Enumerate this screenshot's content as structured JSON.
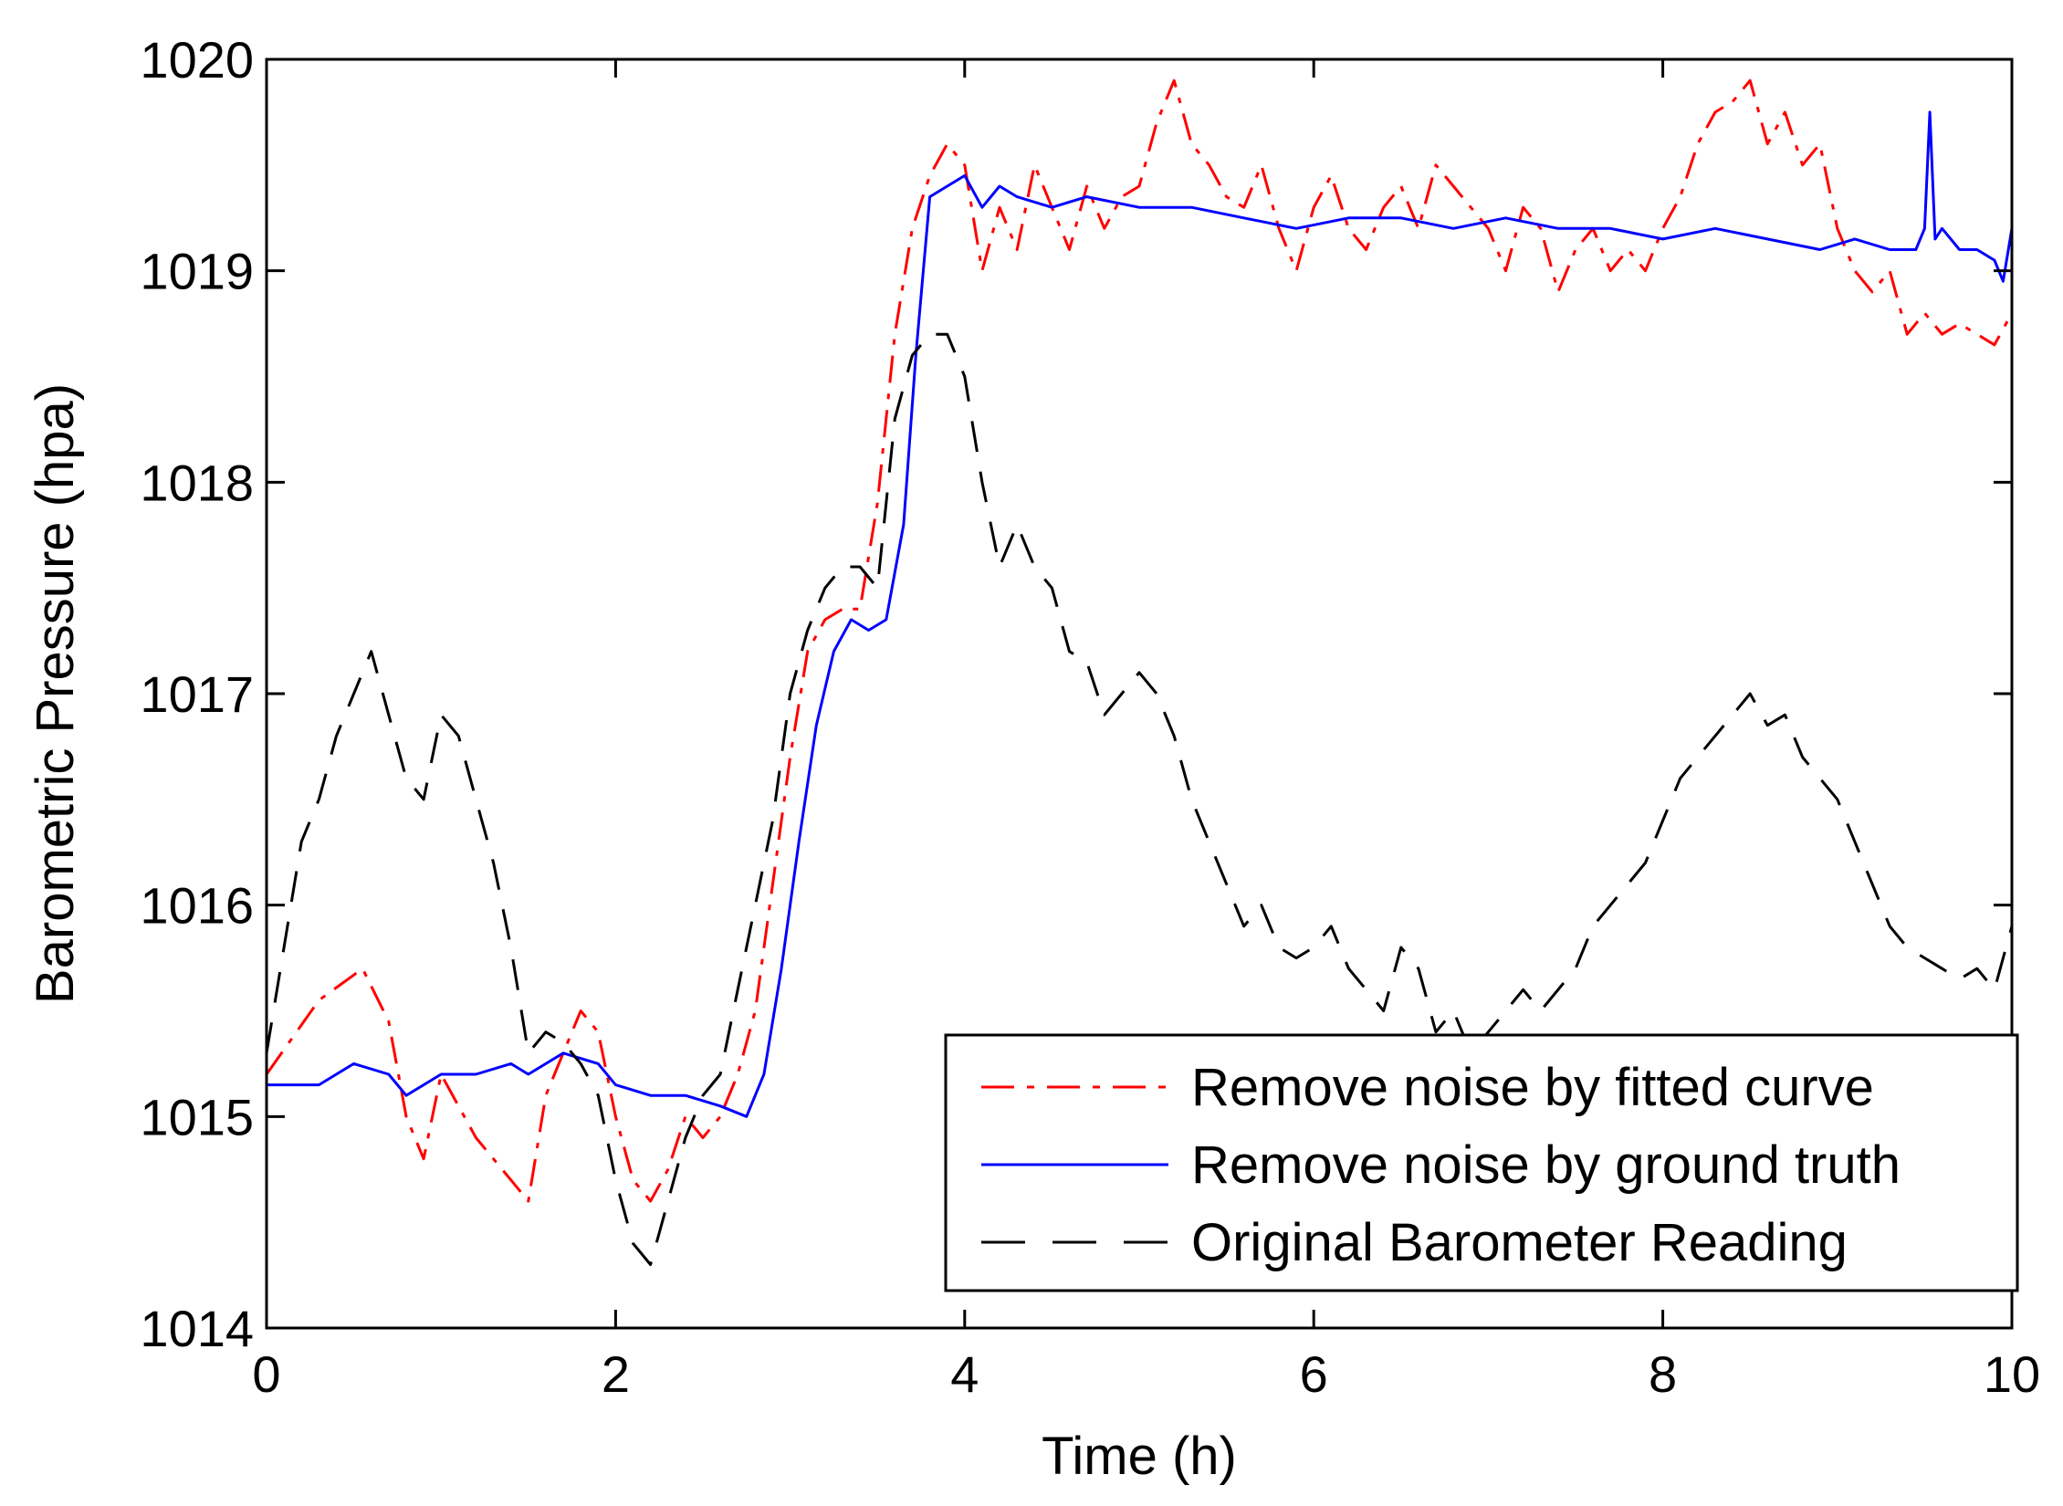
{
  "chart_data": {
    "type": "line",
    "title": "",
    "xlabel": "Time (h)",
    "ylabel": "Barometric Pressure (hpa)",
    "xlim": [
      0,
      10
    ],
    "ylim": [
      1014,
      1020
    ],
    "xticks": [
      0,
      2,
      4,
      6,
      8,
      10
    ],
    "yticks": [
      1014,
      1015,
      1016,
      1017,
      1018,
      1019,
      1020
    ],
    "grid": false,
    "legend_position": "bottom-right",
    "series": [
      {
        "name": "Remove noise by fitted curve",
        "color": "#ff0000",
        "style": "dash-dot",
        "x": [
          0,
          0.3,
          0.55,
          0.7,
          0.8,
          0.9,
          1.0,
          1.1,
          1.2,
          1.3,
          1.4,
          1.5,
          1.6,
          1.7,
          1.8,
          1.9,
          2.0,
          2.1,
          2.2,
          2.3,
          2.4,
          2.5,
          2.6,
          2.7,
          2.8,
          2.9,
          3.0,
          3.1,
          3.2,
          3.3,
          3.4,
          3.5,
          3.6,
          3.7,
          3.8,
          3.9,
          4.0,
          4.1,
          4.2,
          4.3,
          4.4,
          4.5,
          4.6,
          4.7,
          4.8,
          4.9,
          5.0,
          5.1,
          5.2,
          5.3,
          5.4,
          5.5,
          5.6,
          5.7,
          5.8,
          5.9,
          6.0,
          6.1,
          6.2,
          6.3,
          6.4,
          6.5,
          6.6,
          6.7,
          6.8,
          6.9,
          7.0,
          7.1,
          7.2,
          7.3,
          7.4,
          7.5,
          7.6,
          7.7,
          7.8,
          7.9,
          8.0,
          8.1,
          8.2,
          8.3,
          8.4,
          8.5,
          8.6,
          8.7,
          8.8,
          8.9,
          9.0,
          9.1,
          9.2,
          9.3,
          9.4,
          9.5,
          9.6,
          9.7,
          9.8,
          9.9,
          10.0
        ],
        "values": [
          1015.2,
          1015.55,
          1015.7,
          1015.45,
          1015.0,
          1014.8,
          1015.2,
          1015.05,
          1014.9,
          1014.8,
          1014.7,
          1014.6,
          1015.1,
          1015.3,
          1015.5,
          1015.4,
          1015.0,
          1014.7,
          1014.6,
          1014.75,
          1015.0,
          1014.9,
          1015.0,
          1015.2,
          1015.5,
          1016.1,
          1016.7,
          1017.2,
          1017.35,
          1017.4,
          1017.4,
          1017.9,
          1018.7,
          1019.2,
          1019.45,
          1019.6,
          1019.5,
          1019.0,
          1019.3,
          1019.1,
          1019.5,
          1019.3,
          1019.1,
          1019.4,
          1019.2,
          1019.35,
          1019.4,
          1019.7,
          1019.9,
          1019.6,
          1019.5,
          1019.35,
          1019.3,
          1019.5,
          1019.2,
          1019.0,
          1019.3,
          1019.45,
          1019.2,
          1019.1,
          1019.3,
          1019.4,
          1019.2,
          1019.5,
          1019.4,
          1019.3,
          1019.2,
          1019.0,
          1019.3,
          1019.2,
          1018.9,
          1019.1,
          1019.2,
          1019.0,
          1019.1,
          1019.0,
          1019.2,
          1019.35,
          1019.6,
          1019.75,
          1019.8,
          1019.9,
          1019.6,
          1019.75,
          1019.5,
          1019.6,
          1019.2,
          1019.0,
          1018.9,
          1019.0,
          1018.7,
          1018.8,
          1018.7,
          1018.75,
          1018.7,
          1018.65,
          1018.8
        ]
      },
      {
        "name": "Remove noise by ground truth",
        "color": "#0000ff",
        "style": "solid",
        "x": [
          0,
          0.3,
          0.5,
          0.7,
          0.8,
          0.9,
          1.0,
          1.2,
          1.4,
          1.5,
          1.7,
          1.9,
          2.0,
          2.2,
          2.4,
          2.6,
          2.75,
          2.85,
          2.95,
          3.05,
          3.15,
          3.25,
          3.35,
          3.45,
          3.55,
          3.65,
          3.72,
          3.8,
          3.9,
          4.0,
          4.1,
          4.2,
          4.3,
          4.5,
          4.7,
          5.0,
          5.3,
          5.6,
          5.9,
          6.2,
          6.5,
          6.8,
          7.1,
          7.4,
          7.7,
          8.0,
          8.3,
          8.6,
          8.9,
          9.1,
          9.3,
          9.45,
          9.5,
          9.53,
          9.56,
          9.6,
          9.7,
          9.8,
          9.9,
          9.95,
          10.0
        ],
        "values": [
          1015.15,
          1015.15,
          1015.25,
          1015.2,
          1015.1,
          1015.15,
          1015.2,
          1015.2,
          1015.25,
          1015.2,
          1015.3,
          1015.25,
          1015.15,
          1015.1,
          1015.1,
          1015.05,
          1015.0,
          1015.2,
          1015.7,
          1016.3,
          1016.85,
          1017.2,
          1017.35,
          1017.3,
          1017.35,
          1017.8,
          1018.6,
          1019.35,
          1019.4,
          1019.45,
          1019.3,
          1019.4,
          1019.35,
          1019.3,
          1019.35,
          1019.3,
          1019.3,
          1019.25,
          1019.2,
          1019.25,
          1019.25,
          1019.2,
          1019.25,
          1019.2,
          1019.2,
          1019.15,
          1019.2,
          1019.15,
          1019.1,
          1019.15,
          1019.1,
          1019.1,
          1019.2,
          1019.75,
          1019.15,
          1019.2,
          1019.1,
          1019.1,
          1019.05,
          1018.95,
          1019.2
        ]
      },
      {
        "name": "Original Barometer Reading",
        "color": "#000000",
        "style": "dashed",
        "x": [
          0,
          0.1,
          0.2,
          0.3,
          0.4,
          0.5,
          0.6,
          0.7,
          0.8,
          0.9,
          1.0,
          1.1,
          1.2,
          1.3,
          1.4,
          1.5,
          1.6,
          1.7,
          1.8,
          1.9,
          2.0,
          2.1,
          2.2,
          2.3,
          2.4,
          2.5,
          2.6,
          2.7,
          2.8,
          2.9,
          3.0,
          3.1,
          3.2,
          3.3,
          3.4,
          3.5,
          3.6,
          3.7,
          3.8,
          3.9,
          4.0,
          4.1,
          4.2,
          4.3,
          4.4,
          4.5,
          4.6,
          4.7,
          4.8,
          4.9,
          5.0,
          5.1,
          5.2,
          5.3,
          5.4,
          5.5,
          5.6,
          5.7,
          5.8,
          5.9,
          6.0,
          6.1,
          6.2,
          6.3,
          6.4,
          6.5,
          6.6,
          6.7,
          6.8,
          6.9,
          7.0,
          7.1,
          7.2,
          7.3,
          7.4,
          7.5,
          7.6,
          7.7,
          7.8,
          7.9,
          8.0,
          8.1,
          8.2,
          8.3,
          8.4,
          8.5,
          8.6,
          8.7,
          8.8,
          8.9,
          9.0,
          9.1,
          9.2,
          9.3,
          9.4,
          9.5,
          9.6,
          9.7,
          9.8,
          9.9,
          10.0
        ],
        "values": [
          1015.3,
          1015.8,
          1016.3,
          1016.5,
          1016.8,
          1017.0,
          1017.2,
          1016.9,
          1016.6,
          1016.5,
          1016.9,
          1016.8,
          1016.5,
          1016.2,
          1015.8,
          1015.3,
          1015.4,
          1015.35,
          1015.25,
          1015.1,
          1014.7,
          1014.4,
          1014.3,
          1014.6,
          1014.9,
          1015.1,
          1015.2,
          1015.6,
          1016.0,
          1016.4,
          1017.0,
          1017.3,
          1017.5,
          1017.6,
          1017.6,
          1017.5,
          1018.3,
          1018.6,
          1018.7,
          1018.7,
          1018.5,
          1018.0,
          1017.6,
          1017.8,
          1017.6,
          1017.5,
          1017.2,
          1017.15,
          1016.9,
          1017.0,
          1017.1,
          1017.0,
          1016.8,
          1016.5,
          1016.3,
          1016.1,
          1015.9,
          1016.0,
          1015.8,
          1015.75,
          1015.8,
          1015.9,
          1015.7,
          1015.6,
          1015.5,
          1015.8,
          1015.7,
          1015.4,
          1015.5,
          1015.3,
          1015.4,
          1015.5,
          1015.6,
          1015.5,
          1015.6,
          1015.7,
          1015.9,
          1016.0,
          1016.1,
          1016.2,
          1016.4,
          1016.6,
          1016.7,
          1016.8,
          1016.9,
          1017.0,
          1016.85,
          1016.9,
          1016.7,
          1016.6,
          1016.5,
          1016.3,
          1016.1,
          1015.9,
          1015.8,
          1015.75,
          1015.7,
          1015.65,
          1015.7,
          1015.6,
          1015.9
        ]
      }
    ]
  }
}
